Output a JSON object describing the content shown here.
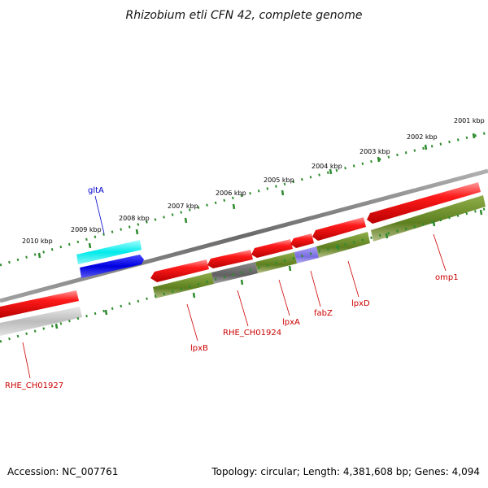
{
  "title": "Rhizobium etli CFN 42, complete genome",
  "footer": {
    "accession": "Accession: NC_007761",
    "topology": "Topology: circular; Length: 4,381,608 bp; Genes: 4,094"
  },
  "colors": {
    "backbone": "#8a8a8a",
    "tick": "#2e8b2e",
    "forward_gene": "#ee0000",
    "reverse_gene_light": "#c8c8c8",
    "cog_olive": "#6b8e23",
    "cog_gray": "#707070",
    "cog_purple": "#8a7ee8",
    "cyan_feature": "#00f0f0",
    "blue_feature": "#0000e0",
    "label_red": "#cc0000",
    "label_blue": "#0000cc"
  },
  "scale_labels": [
    "2001 kbp",
    "2002 kbp",
    "2003 kbp",
    "2004 kbp",
    "2005 kbp",
    "2006 kbp",
    "2007 kbp",
    "2008 kbp",
    "2009 kbp",
    "2010 kbp"
  ],
  "gene_labels": [
    "omp1",
    "lpxD",
    "fabZ",
    "lpxA",
    "RHE_CH01924",
    "lpxB",
    "RHE_CH01927",
    "gltA"
  ]
}
